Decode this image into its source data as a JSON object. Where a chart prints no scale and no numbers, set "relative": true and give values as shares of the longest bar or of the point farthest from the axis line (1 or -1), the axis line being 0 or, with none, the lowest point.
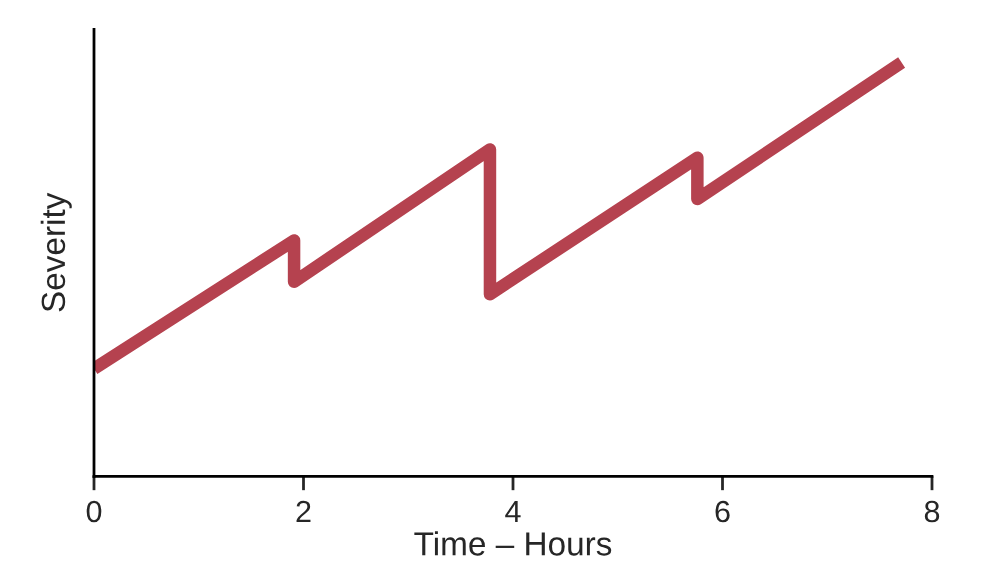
{
  "chart_data": {
    "type": "line",
    "xlabel": "Time – Hours",
    "ylabel": "Severity",
    "relative": true,
    "xlim": [
      0,
      8
    ],
    "xticks": [
      0,
      2,
      4,
      6,
      8
    ],
    "grid": false,
    "legend": false,
    "marker": "none",
    "line_style": "solid",
    "series": [
      {
        "color": "#b5424f",
        "x": [
          0,
          1.91,
          1.91,
          3.78,
          3.78,
          5.76,
          5.76,
          7.71
        ],
        "values": [
          0.26,
          0.57,
          0.47,
          0.79,
          0.44,
          0.77,
          0.67,
          1.0
        ]
      }
    ]
  }
}
